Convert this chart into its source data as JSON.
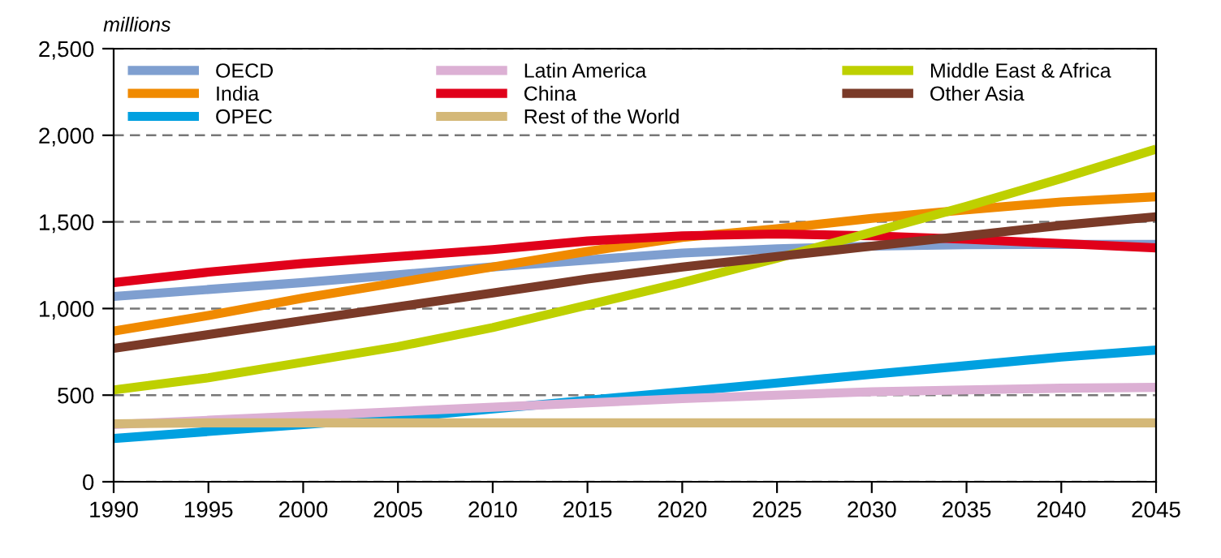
{
  "chart_data": {
    "type": "line",
    "ylabel": "millions",
    "x": [
      1990,
      1995,
      2000,
      2005,
      2010,
      2015,
      2020,
      2025,
      2030,
      2035,
      2040,
      2045
    ],
    "series": [
      {
        "name": "OECD",
        "color": "#7f9fd0",
        "values": [
          1070,
          1110,
          1150,
          1195,
          1240,
          1280,
          1320,
          1345,
          1360,
          1368,
          1370,
          1370
        ]
      },
      {
        "name": "India",
        "color": "#f08a00",
        "values": [
          870,
          960,
          1060,
          1150,
          1240,
          1330,
          1410,
          1460,
          1520,
          1570,
          1615,
          1645
        ]
      },
      {
        "name": "OPEC",
        "color": "#00a0e0",
        "values": [
          250,
          290,
          330,
          370,
          420,
          470,
          520,
          570,
          620,
          670,
          720,
          760
        ]
      },
      {
        "name": "Latin America",
        "color": "#dcb0d4",
        "values": [
          330,
          355,
          380,
          405,
          430,
          455,
          480,
          500,
          520,
          530,
          540,
          545
        ]
      },
      {
        "name": "China",
        "color": "#e0001a",
        "values": [
          1150,
          1210,
          1260,
          1300,
          1340,
          1390,
          1420,
          1430,
          1420,
          1400,
          1375,
          1350
        ]
      },
      {
        "name": "Rest of the World",
        "color": "#d4b878",
        "values": [
          335,
          340,
          340,
          340,
          340,
          340,
          340,
          340,
          340,
          340,
          340,
          340
        ]
      },
      {
        "name": "Middle East & Africa",
        "color": "#bed000",
        "values": [
          530,
          600,
          690,
          780,
          890,
          1020,
          1150,
          1290,
          1440,
          1590,
          1750,
          1920
        ]
      },
      {
        "name": "Other Asia",
        "color": "#7a3a28",
        "values": [
          770,
          850,
          930,
          1010,
          1090,
          1170,
          1240,
          1300,
          1360,
          1420,
          1480,
          1530
        ]
      }
    ],
    "xlim": [
      1990,
      2045
    ],
    "xticks": [
      1990,
      1995,
      2000,
      2005,
      2010,
      2015,
      2020,
      2025,
      2030,
      2035,
      2040,
      2045
    ],
    "ylim": [
      0,
      2500
    ],
    "yticks": [
      {
        "value": 0,
        "label": "0"
      },
      {
        "value": 500,
        "label": "500"
      },
      {
        "value": 1000,
        "label": "1,000"
      },
      {
        "value": 1500,
        "label": "1,500"
      },
      {
        "value": 2000,
        "label": "2,000"
      },
      {
        "value": 2500,
        "label": "2,500"
      }
    ],
    "grid": "y",
    "legend": "top left",
    "marker": "none",
    "line_style": "solid"
  }
}
